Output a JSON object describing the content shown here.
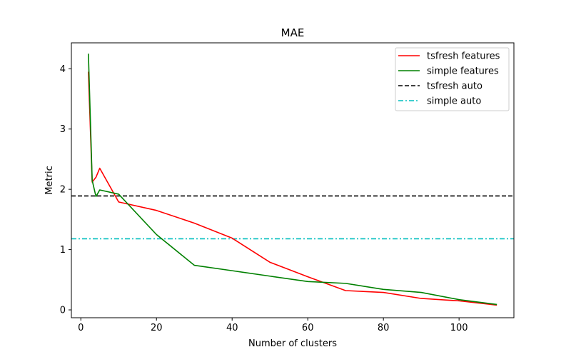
{
  "chart_data": {
    "type": "line",
    "title": "MAE",
    "xlabel": "Number of clusters",
    "ylabel": "Metric",
    "xlim": [
      -2.5,
      114.5
    ],
    "ylim": [
      -0.13,
      4.43
    ],
    "xticks": [
      0,
      20,
      40,
      60,
      80,
      100
    ],
    "yticks": [
      0,
      1,
      2,
      3,
      4
    ],
    "grid": false,
    "legend_position": "top-right",
    "series": [
      {
        "name": "tsfresh features",
        "color": "#ff0000",
        "style": "solid",
        "x": [
          2,
          3,
          4,
          5,
          10,
          20,
          30,
          40,
          50,
          60,
          70,
          80,
          90,
          100,
          110
        ],
        "y": [
          3.95,
          2.12,
          2.2,
          2.35,
          1.79,
          1.65,
          1.44,
          1.19,
          0.79,
          0.55,
          0.32,
          0.29,
          0.19,
          0.15,
          0.08
        ]
      },
      {
        "name": "simple features",
        "color": "#008000",
        "style": "solid",
        "x": [
          2,
          3,
          4,
          5,
          10,
          20,
          30,
          40,
          50,
          60,
          70,
          80,
          90,
          100,
          110
        ],
        "y": [
          4.25,
          2.15,
          1.88,
          1.99,
          1.92,
          1.25,
          0.74,
          0.65,
          0.56,
          0.47,
          0.44,
          0.34,
          0.29,
          0.17,
          0.09
        ]
      }
    ],
    "reference_lines": [
      {
        "name": "tsfresh auto",
        "color": "#000000",
        "style": "dashed",
        "y": 1.89
      },
      {
        "name": "simple auto",
        "color": "#00bfbf",
        "style": "dashdot",
        "y": 1.18
      }
    ]
  }
}
